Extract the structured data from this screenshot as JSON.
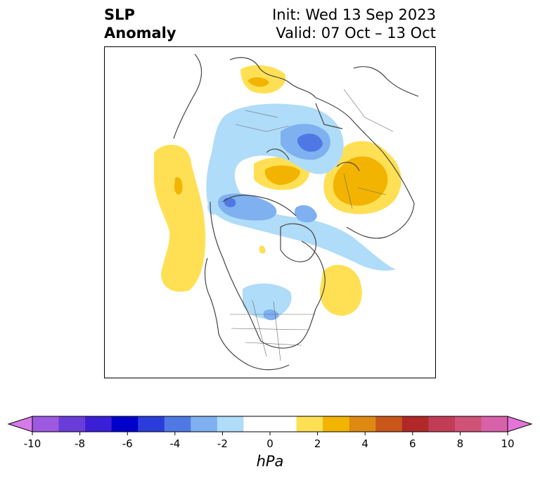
{
  "title": {
    "left_line1": "SLP",
    "left_line2": "Anomaly",
    "right_line1": "Init: Wed 13 Sep 2023",
    "right_line2": "Valid: 07 Oct – 13 Oct"
  },
  "colorbar": {
    "unit": "hPa",
    "min": -10,
    "max": 10,
    "step": 1,
    "extend": "both",
    "tick_labels": [
      "-10",
      "-8",
      "-6",
      "-4",
      "-2",
      "0",
      "2",
      "4",
      "6",
      "8",
      "10"
    ],
    "colors": [
      "#d67ae8",
      "#9d5ae0",
      "#6a3cd9",
      "#3a1fd6",
      "#0000cc",
      "#2a3ddb",
      "#5078e4",
      "#7fb0f0",
      "#afdcf8",
      "#ffffff",
      "#ffffff",
      "#ffe055",
      "#f2b400",
      "#de8a12",
      "#c9561b",
      "#b02828",
      "#c23c56",
      "#cf5277",
      "#d862a8",
      "#e474d8"
    ],
    "colors_hex": {
      "neg_light": "#afdcf8",
      "neg_mid": "#7fb0f0",
      "neg_strong": "#5078e4",
      "pos_light": "#ffe055",
      "pos_mid": "#f2b400"
    }
  },
  "map": {
    "projection": "north-polar-stereographic",
    "background": "#ffffff",
    "coastline_color": "#444444",
    "features": [
      {
        "name": "scandinavia-positive",
        "sign": "positive",
        "peak_hpa": 2
      },
      {
        "name": "siberia-arctic-negative",
        "sign": "negative",
        "peak_hpa": -4
      },
      {
        "name": "kara-sea-positive",
        "sign": "positive",
        "peak_hpa": 3
      },
      {
        "name": "east-siberia-positive",
        "sign": "positive",
        "peak_hpa": 3
      },
      {
        "name": "north-pacific-positive",
        "sign": "positive",
        "peak_hpa": 2
      },
      {
        "name": "alaska-beaufort-negative",
        "sign": "negative",
        "peak_hpa": -3
      },
      {
        "name": "hudson-bay-negative",
        "sign": "negative",
        "peak_hpa": -2
      },
      {
        "name": "north-atlantic-positive",
        "sign": "positive",
        "peak_hpa": 1
      },
      {
        "name": "central-canada-positive",
        "sign": "positive",
        "peak_hpa": 1
      }
    ]
  }
}
